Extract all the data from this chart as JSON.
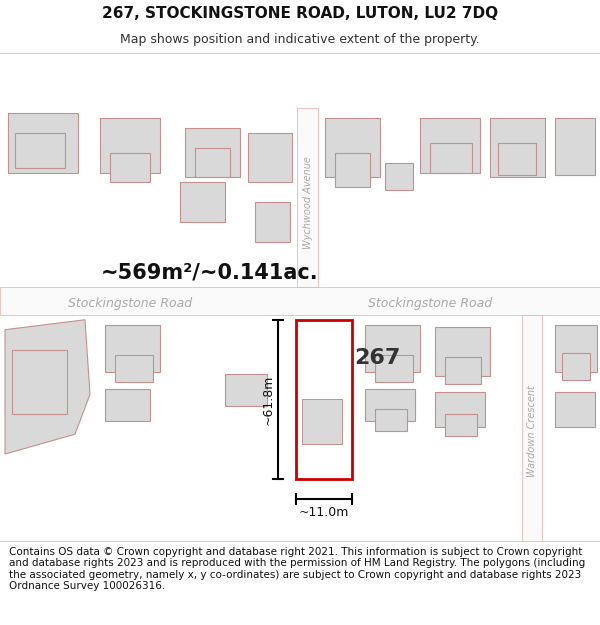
{
  "title": "267, STOCKINGSTONE ROAD, LUTON, LU2 7DQ",
  "subtitle": "Map shows position and indicative extent of the property.",
  "area_text": "~569m²/~0.141ac.",
  "dim_width": "~11.0m",
  "dim_height": "~61.8m",
  "property_label": "267",
  "footer": "Contains OS data © Crown copyright and database right 2021. This information is subject to Crown copyright and database rights 2023 and is reproduced with the permission of HM Land Registry. The polygons (including the associated geometry, namely x, y co-ordinates) are subject to Crown copyright and database rights 2023 Ordnance Survey 100026316.",
  "bg_color": "#f2f0f0",
  "road_fill": "#fafafa",
  "road_outline": "#e8aaaa",
  "building_fill": "#d9d9d9",
  "building_outline": "#c49090",
  "property_fill": "#ffffff",
  "property_outline": "#cc0000",
  "road_label_color": "#aaaaaa",
  "title_fontsize": 11,
  "subtitle_fontsize": 9,
  "footer_fontsize": 7.5
}
